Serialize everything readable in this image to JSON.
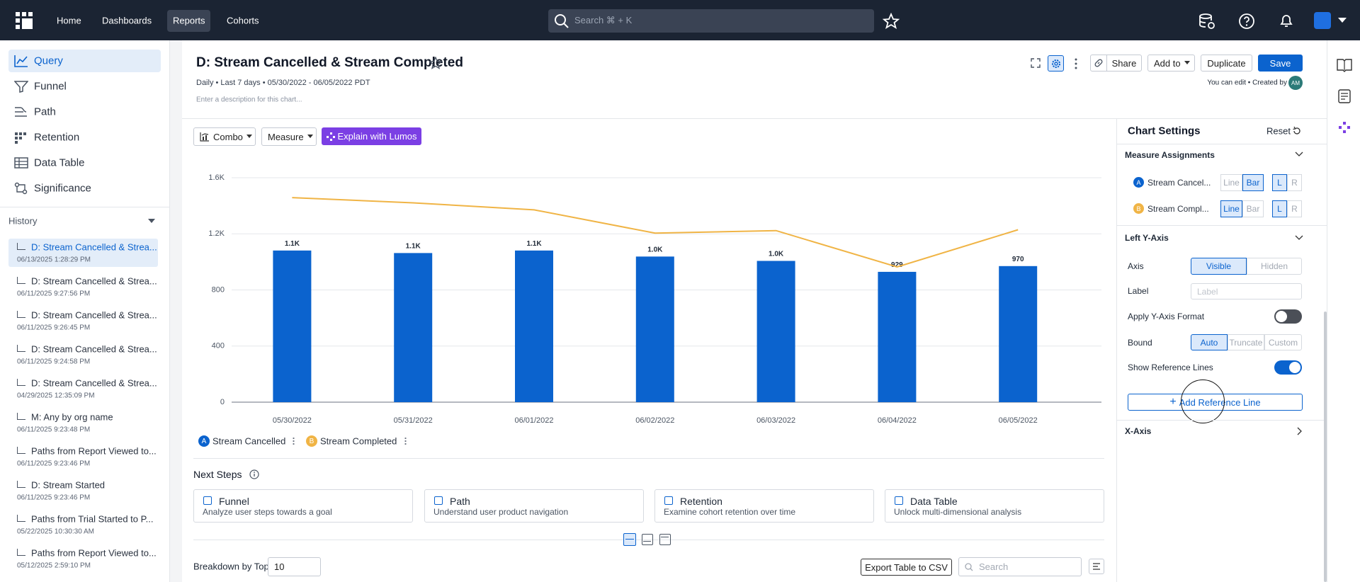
{
  "nav": {
    "items": [
      "Home",
      "Dashboards",
      "Reports",
      "Cohorts"
    ],
    "search_placeholder": "Search ⌘ + K"
  },
  "sidebar": {
    "tools": [
      "Query",
      "Funnel",
      "Path",
      "Retention",
      "Data Table",
      "Significance"
    ],
    "history_title": "History",
    "history": [
      {
        "title": "D: Stream Cancelled & Strea...",
        "date": "06/13/2025 1:28:29 PM"
      },
      {
        "title": "D: Stream Cancelled & Strea...",
        "date": "06/11/2025 9:27:56 PM"
      },
      {
        "title": "D: Stream Cancelled & Strea...",
        "date": "06/11/2025 9:26:45 PM"
      },
      {
        "title": "D: Stream Cancelled & Strea...",
        "date": "06/11/2025 9:24:58 PM"
      },
      {
        "title": "D: Stream Cancelled & Strea...",
        "date": "04/29/2025 12:35:09 PM"
      },
      {
        "title": "M: Any by org name",
        "date": "06/11/2025 9:23:48 PM"
      },
      {
        "title": "Paths from Report Viewed to...",
        "date": "06/11/2025 9:23:46 PM"
      },
      {
        "title": "D: Stream Started",
        "date": "06/11/2025 9:23:46 PM"
      },
      {
        "title": "Paths from Trial Started to P...",
        "date": "05/22/2025 10:30:30 AM"
      },
      {
        "title": "Paths from Report Viewed to...",
        "date": "05/12/2025 2:59:10 PM"
      }
    ]
  },
  "report": {
    "title": "D: Stream Cancelled & Stream Completed",
    "meta": "Daily • Last 7 days • 05/30/2022 - 06/05/2022 PDT",
    "description_placeholder": "Enter a description for this chart...",
    "share": "Share",
    "add_to": "Add to",
    "duplicate": "Duplicate",
    "save": "Save",
    "edit_note": "You can edit • Created by",
    "avatar": "AM"
  },
  "toolbar": {
    "chart_type": "Combo",
    "measure": "Measure",
    "explain": "Explain with Lumos"
  },
  "chart_data": {
    "type": "combo",
    "categories": [
      "05/30/2022",
      "05/31/2022",
      "06/01/2022",
      "06/02/2022",
      "06/03/2022",
      "06/04/2022",
      "06/05/2022"
    ],
    "series": [
      {
        "name": "Stream Cancelled",
        "badge": "A",
        "type": "bar",
        "color": "#0b63ce",
        "values": [
          1081,
          1063,
          1081,
          1038,
          1007,
          929,
          970
        ],
        "value_labels": [
          "1.1K",
          "1.1K",
          "1.1K",
          "1.0K",
          "1.0K",
          "929",
          "970"
        ]
      },
      {
        "name": "Stream Completed",
        "badge": "B",
        "type": "line",
        "color": "#f0b445",
        "values": [
          1458,
          1421,
          1371,
          1205,
          1223,
          964,
          1229
        ]
      }
    ],
    "ylim": [
      0,
      1600
    ],
    "yticks": [
      0,
      400,
      800,
      {
        "value": 1200,
        "label": "1.2K"
      },
      {
        "value": 1600,
        "label": "1.6K"
      }
    ],
    "grid": true
  },
  "next_steps": {
    "title": "Next Steps",
    "cards": [
      {
        "title": "Funnel",
        "desc": "Analyze user steps towards a goal"
      },
      {
        "title": "Path",
        "desc": "Understand user product navigation"
      },
      {
        "title": "Retention",
        "desc": "Examine cohort retention over time"
      },
      {
        "title": "Data Table",
        "desc": "Unlock multi-dimensional analysis"
      }
    ]
  },
  "breakdown": {
    "label": "Breakdown by Top",
    "value": "10",
    "export": "Export Table to CSV",
    "search_placeholder": "Search"
  },
  "settings": {
    "title": "Chart Settings",
    "reset": "Reset",
    "measure_title": "Measure Assignments",
    "rows": [
      {
        "name": "Stream Cancel..."
      },
      {
        "name": "Stream Compl..."
      }
    ],
    "types": [
      "Line",
      "Bar"
    ],
    "sides": [
      "L",
      "R"
    ],
    "left_y_title": "Left Y-Axis",
    "axis_label": "Axis",
    "axis_options": [
      "Visible",
      "Hidden"
    ],
    "label_label": "Label",
    "label_placeholder": "Label",
    "format_label": "Apply Y-Axis Format",
    "bound_label": "Bound",
    "bound_options": [
      "Auto",
      "Truncate",
      "Custom"
    ],
    "ref_label": "Show Reference Lines",
    "add_ref": "Add Reference Line",
    "x_axis_title": "X-Axis"
  }
}
